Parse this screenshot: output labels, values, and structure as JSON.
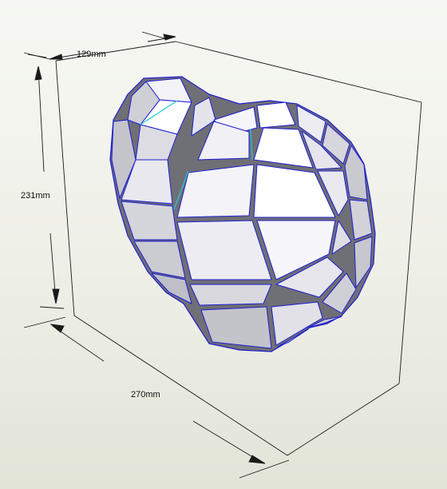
{
  "dimensions": {
    "depth": "129mm",
    "height": "231mm",
    "width": "270mm"
  },
  "colors": {
    "background_top": "#f7f8f3",
    "background_bottom": "#e3e4d8",
    "box_lines": "#1a1a1a",
    "mesh_edges": "#1e1ed0",
    "highlight_edges": "#22c8d8",
    "face_light": "#f4f4f8",
    "face_shade": "#c9c9cf",
    "gap": "#6f6f76"
  },
  "icons": {
    "model": "low-poly-heart-papercraft"
  }
}
